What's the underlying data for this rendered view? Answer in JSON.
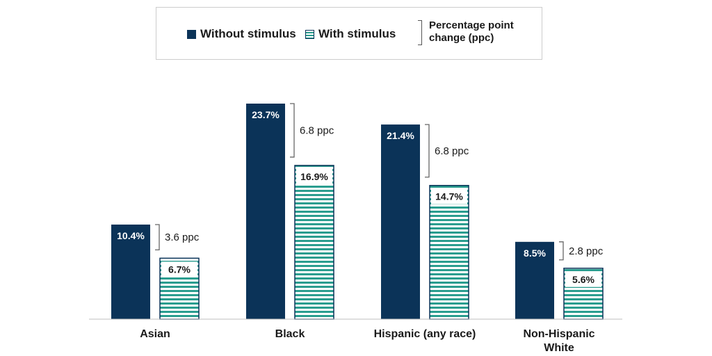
{
  "legend": {
    "without_label": "Without stimulus",
    "with_label": "With stimulus",
    "ppc_label": "Percentage point change (ppc)"
  },
  "colors": {
    "without": "#0b3358",
    "with_stripe": "#2a9d8f",
    "bracket": "#666666"
  },
  "chart_data": {
    "type": "bar",
    "categories": [
      "Asian",
      "Black",
      "Hispanic (any race)",
      "Non-Hispanic White"
    ],
    "series": [
      {
        "name": "Without stimulus",
        "values": [
          10.4,
          23.7,
          21.4,
          8.5
        ]
      },
      {
        "name": "With stimulus",
        "values": [
          6.7,
          16.9,
          14.7,
          5.6
        ]
      }
    ],
    "data_labels": {
      "without": [
        "10.4%",
        "23.7%",
        "21.4%",
        "8.5%"
      ],
      "with": [
        "6.7%",
        "16.9%",
        "14.7%",
        "5.6%"
      ]
    },
    "changes": [
      "3.6 ppc",
      "6.8 ppc",
      "6.8 ppc",
      "2.8 ppc"
    ],
    "ylim": [
      0,
      25
    ],
    "grid": false,
    "legend_position": "top"
  }
}
